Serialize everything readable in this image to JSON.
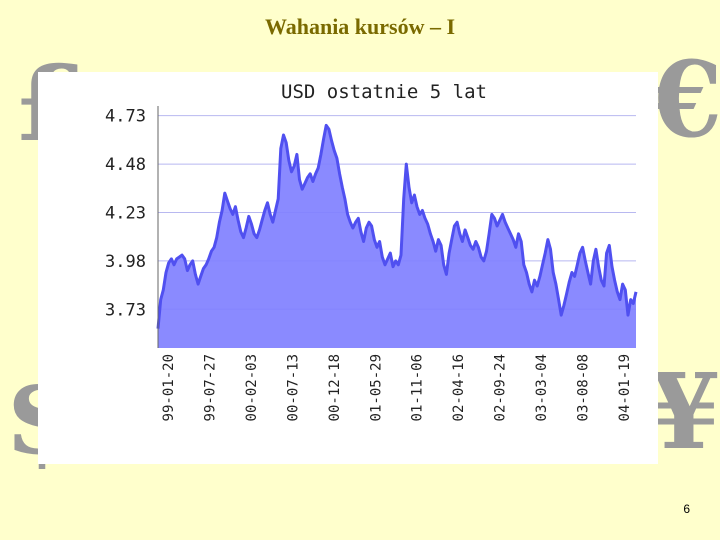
{
  "slide": {
    "title": "Wahania kursów – I",
    "page_number": "6",
    "currency_symbols": {
      "pound": "£",
      "euro": "€",
      "dollar": "$",
      "yen": "¥"
    }
  },
  "chart_data": {
    "type": "area",
    "title": "USD ostatnie 5 lat",
    "xlabel": "",
    "ylabel": "",
    "y_ticks": [
      "3.73",
      "3.98",
      "4.23",
      "4.48",
      "4.73"
    ],
    "ylim": [
      3.53,
      4.78
    ],
    "grid": true,
    "x_tick_labels": [
      "99-01-20",
      "99-07-27",
      "00-02-03",
      "00-07-13",
      "00-12-18",
      "01-05-29",
      "01-11-06",
      "02-04-16",
      "02-09-24",
      "03-03-04",
      "03-08-08",
      "04-01-19"
    ],
    "fill_color": "#8080ff",
    "line_color": "#5050f0",
    "series": [
      {
        "values": [
          3.63,
          3.78,
          3.83,
          3.92,
          3.97,
          3.99,
          3.96,
          3.99,
          4.0,
          4.01,
          3.99,
          3.93,
          3.96,
          3.98,
          3.91,
          3.86,
          3.9,
          3.94,
          3.96,
          3.99,
          4.03,
          4.05,
          4.1,
          4.18,
          4.24,
          4.33,
          4.29,
          4.25,
          4.22,
          4.26,
          4.19,
          4.13,
          4.1,
          4.15,
          4.21,
          4.17,
          4.12,
          4.1,
          4.14,
          4.19,
          4.24,
          4.28,
          4.22,
          4.18,
          4.24,
          4.3,
          4.56,
          4.63,
          4.59,
          4.5,
          4.44,
          4.47,
          4.53,
          4.4,
          4.35,
          4.38,
          4.41,
          4.43,
          4.39,
          4.43,
          4.46,
          4.53,
          4.61,
          4.68,
          4.66,
          4.6,
          4.55,
          4.51,
          4.43,
          4.36,
          4.3,
          4.22,
          4.18,
          4.15,
          4.18,
          4.2,
          4.13,
          4.08,
          4.15,
          4.18,
          4.16,
          4.09,
          4.05,
          4.08,
          4.0,
          3.96,
          3.99,
          4.02,
          3.95,
          3.98,
          3.96,
          4.01,
          4.3,
          4.48,
          4.36,
          4.28,
          4.32,
          4.26,
          4.22,
          4.24,
          4.2,
          4.17,
          4.12,
          4.08,
          4.03,
          4.09,
          4.06,
          3.96,
          3.91,
          4.02,
          4.09,
          4.16,
          4.18,
          4.12,
          4.08,
          4.14,
          4.1,
          4.06,
          4.04,
          4.08,
          4.05,
          4.0,
          3.98,
          4.03,
          4.12,
          4.22,
          4.2,
          4.16,
          4.19,
          4.22,
          4.18,
          4.15,
          4.12,
          4.09,
          4.05,
          4.12,
          4.08,
          3.96,
          3.92,
          3.86,
          3.82,
          3.88,
          3.85,
          3.9,
          3.96,
          4.02,
          4.09,
          4.04,
          3.92,
          3.86,
          3.78,
          3.7,
          3.75,
          3.81,
          3.87,
          3.92,
          3.9,
          3.96,
          4.02,
          4.05,
          3.98,
          3.92,
          3.86,
          3.98,
          4.04,
          3.95,
          3.88,
          3.85,
          4.02,
          4.06,
          3.95,
          3.88,
          3.82,
          3.78,
          3.86,
          3.83,
          3.7,
          3.78,
          3.76,
          3.82
        ]
      }
    ]
  }
}
